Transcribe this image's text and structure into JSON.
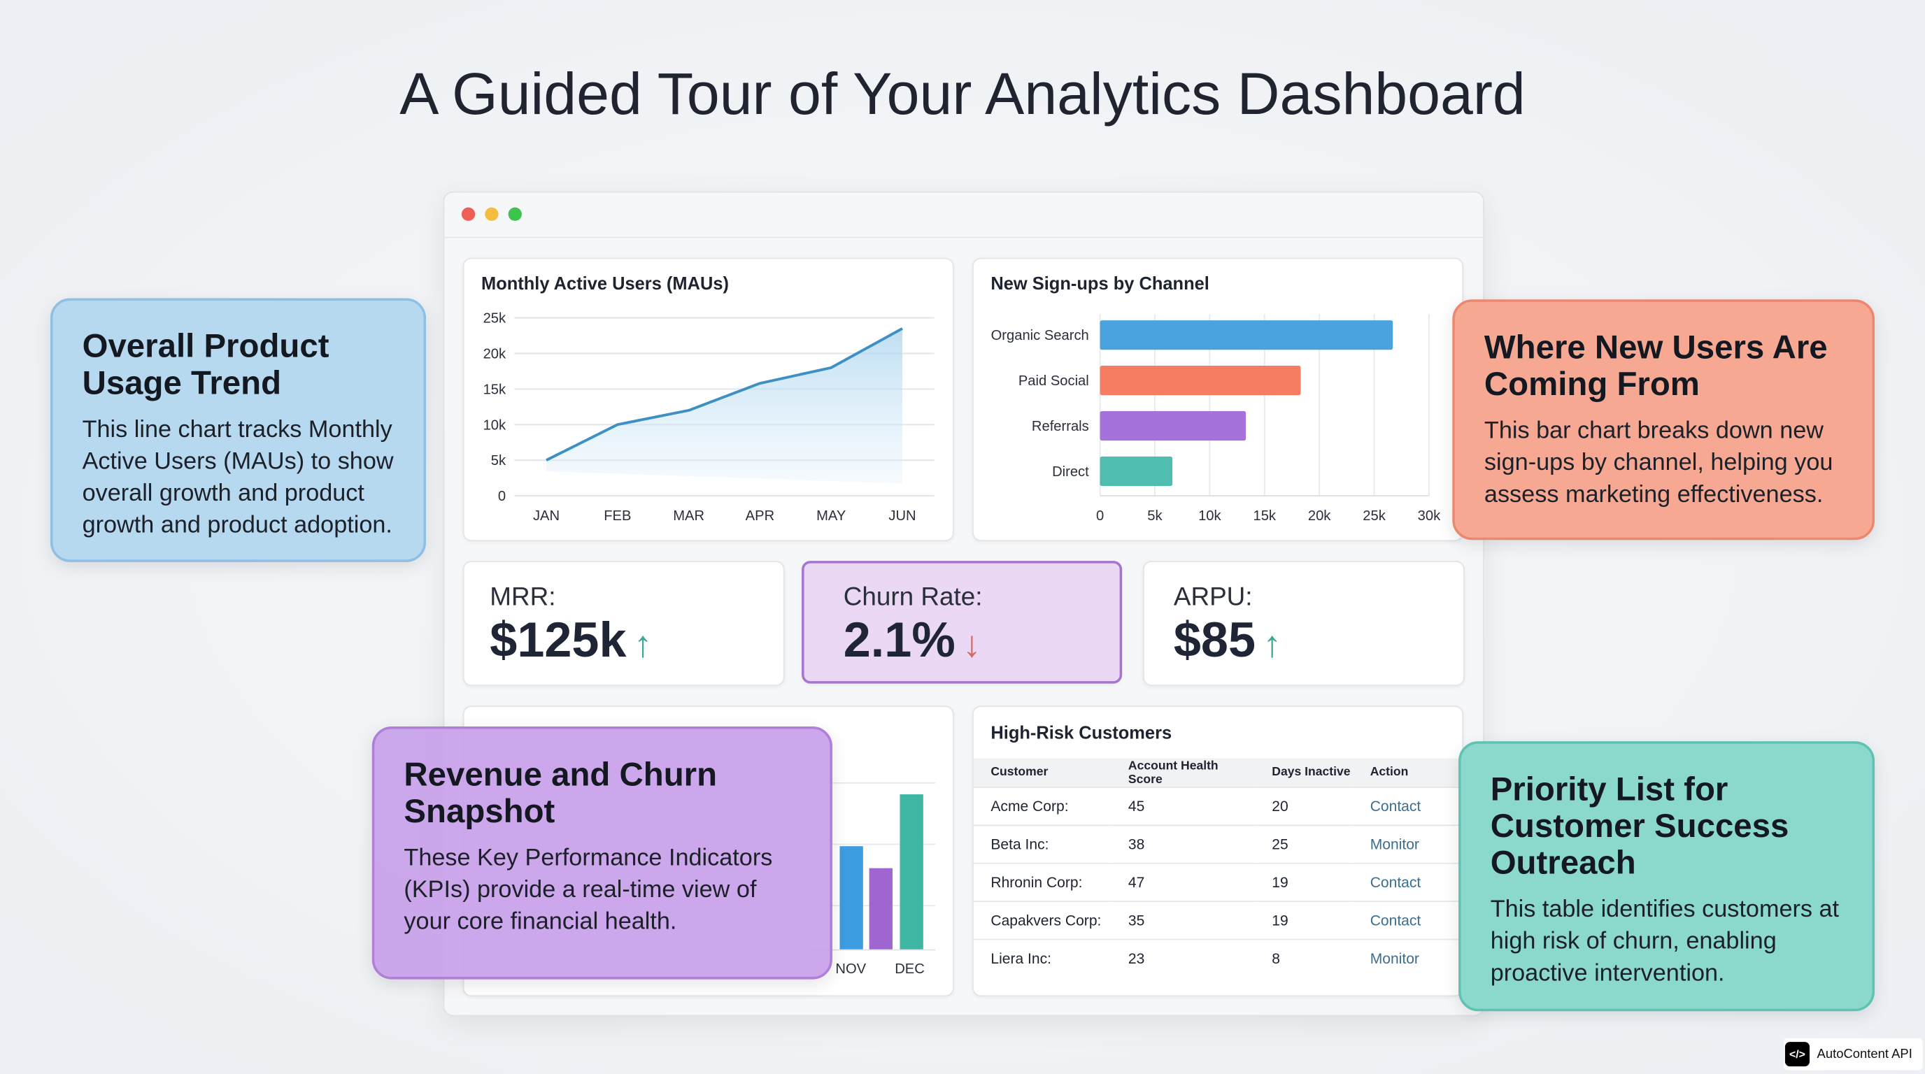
{
  "title": "A Guided Tour of Your Analytics Dashboard",
  "window": {
    "dots": [
      "#ee5f57",
      "#f4bd3f",
      "#3fc34f"
    ]
  },
  "mau": {
    "title": "Monthly Active Users (MAUs)",
    "chart_data": {
      "type": "area",
      "title": "Monthly Active Users (MAUs)",
      "categories": [
        "JAN",
        "FEB",
        "MAR",
        "APR",
        "MAY",
        "JUN"
      ],
      "values": [
        5000,
        10000,
        12000,
        15800,
        18000,
        23500
      ],
      "yticks": [
        "0",
        "5k",
        "10k",
        "15k",
        "20k",
        "25k"
      ],
      "ylim": [
        0,
        25000
      ],
      "grid": true,
      "color": "#3d8fc4"
    }
  },
  "signups": {
    "title": "New Sign-ups by Channel",
    "chart_data": {
      "type": "bar",
      "orientation": "horizontal",
      "title": "New Sign-ups by Channel",
      "categories": [
        "Organic Search",
        "Paid Social",
        "Referrals",
        "Direct"
      ],
      "values": [
        26700,
        18300,
        13300,
        6600
      ],
      "colors": [
        "#4aa3de",
        "#f67c62",
        "#a572db",
        "#4fbdb0"
      ],
      "xticks": [
        "0",
        "5k",
        "10k",
        "15k",
        "20k",
        "25k",
        "30k"
      ],
      "xlim": [
        0,
        30000
      ],
      "grid": true
    }
  },
  "kpis": [
    {
      "label": "MRR:",
      "value": "$125k",
      "trend": "up",
      "arrow": "↑",
      "color": "#3aa893"
    },
    {
      "label": "Churn Rate:",
      "value": "2.1%",
      "trend": "down",
      "arrow": "↓",
      "color": "#d36a6a"
    },
    {
      "label": "ARPU:",
      "value": "$85",
      "trend": "up",
      "arrow": "↑",
      "color": "#3aa893"
    }
  ],
  "revenue": {
    "chart_data": {
      "type": "bar",
      "categories": [
        "NOV",
        "DEC"
      ],
      "bars": [
        {
          "value": 0.66,
          "color": "#3d9de0"
        },
        {
          "value": 0.52,
          "color": "#9f66d1"
        },
        {
          "value": 0.99,
          "color": "#3fb5a3"
        }
      ]
    }
  },
  "table": {
    "title": "High-Risk Customers",
    "columns": [
      "Customer",
      "Account Health Score",
      "Days Inactive",
      "Action"
    ],
    "rows": [
      [
        "Acme Corp:",
        "45",
        "20",
        "Contact"
      ],
      [
        "Beta Inc:",
        "38",
        "25",
        "Monitor"
      ],
      [
        "Rhronin Corp:",
        "47",
        "19",
        "Contact"
      ],
      [
        "Capakvers Corp:",
        "35",
        "19",
        "Contact"
      ],
      [
        "Liera Inc:",
        "23",
        "8",
        "Monitor"
      ]
    ]
  },
  "callouts": [
    {
      "title": "Overall Product Usage Trend",
      "body": "This line chart tracks Monthly Active Users (MAUs) to show overall growth and product growth and product adoption.",
      "bg": "#b6d9f0",
      "border": "#8ec0e4"
    },
    {
      "title": "Where New Users Are Coming From",
      "body": "This bar chart breaks down new sign-ups by channel, helping you assess marketing effectiveness.",
      "bg": "#f6a892",
      "border": "#ec8870"
    },
    {
      "title": "Revenue and Churn Snapshot",
      "body": "These Key Performance Indicators (KPIs) provide a real-time view of your core financial health.",
      "bg": "rgba(200,160,234,0.93)",
      "border": "#b07fd8"
    },
    {
      "title": "Priority List for Customer Success Outreach",
      "body": "This table identifies customers at high risk of churn, enabling proactive intervention.",
      "bg": "#8bd8cc",
      "border": "#5fc2b3"
    }
  ],
  "watermark": {
    "label": "AutoContent API",
    "icon": "code-icon"
  }
}
